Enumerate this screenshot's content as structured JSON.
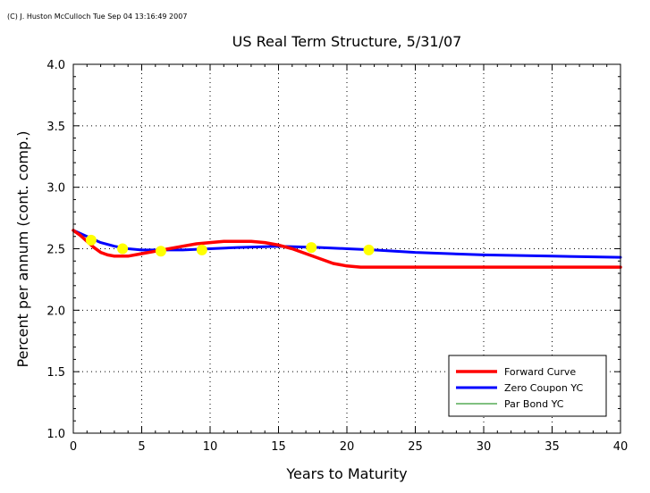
{
  "copyright": "(C) J. Huston McCulloch Tue Sep 04 13:16:49 2007",
  "chart_data": {
    "type": "line",
    "title": "US Real Term Structure, 5/31/07",
    "xlabel": "Years to Maturity",
    "ylabel": "Percent per annum (cont. comp.)",
    "xlim": [
      0,
      40
    ],
    "ylim": [
      1.0,
      4.0
    ],
    "x_ticks": [
      "0",
      "5",
      "10",
      "15",
      "20",
      "25",
      "30",
      "35",
      "40"
    ],
    "y_ticks": [
      "1.0",
      "1.5",
      "2.0",
      "2.5",
      "3.0",
      "3.5",
      "4.0"
    ],
    "grid": true,
    "legend_position": "bottom-right",
    "series": [
      {
        "name": "Forward Curve",
        "color": "#ff0000",
        "x": [
          0,
          0.5,
          1,
          1.5,
          2,
          2.5,
          3,
          3.5,
          4,
          5,
          6,
          7,
          8,
          9,
          10,
          11,
          12,
          13,
          14,
          15,
          16,
          17,
          18,
          19,
          20,
          21,
          22,
          25,
          30,
          35,
          40
        ],
        "y": [
          2.65,
          2.61,
          2.56,
          2.51,
          2.47,
          2.45,
          2.44,
          2.44,
          2.44,
          2.46,
          2.48,
          2.5,
          2.52,
          2.54,
          2.55,
          2.56,
          2.56,
          2.56,
          2.55,
          2.53,
          2.5,
          2.46,
          2.42,
          2.38,
          2.36,
          2.35,
          2.35,
          2.35,
          2.35,
          2.35,
          2.35
        ]
      },
      {
        "name": "Zero Coupon YC",
        "color": "#0000ff",
        "x": [
          0,
          1,
          2,
          3,
          4,
          5,
          6,
          7,
          8,
          10,
          12,
          15,
          18,
          20,
          22,
          25,
          30,
          35,
          40
        ],
        "y": [
          2.65,
          2.6,
          2.55,
          2.52,
          2.5,
          2.49,
          2.49,
          2.49,
          2.49,
          2.5,
          2.51,
          2.52,
          2.51,
          2.5,
          2.49,
          2.47,
          2.45,
          2.44,
          2.43
        ]
      },
      {
        "name": "Par Bond YC",
        "color": "#008000",
        "x": [
          0,
          1,
          2,
          3,
          4,
          5,
          6,
          7,
          8,
          10,
          12,
          15,
          18,
          20,
          22,
          25,
          30,
          35,
          40
        ],
        "y": [
          2.65,
          2.6,
          2.55,
          2.52,
          2.5,
          2.49,
          2.49,
          2.49,
          2.49,
          2.5,
          2.51,
          2.52,
          2.51,
          2.5,
          2.49,
          2.47,
          2.45,
          2.44,
          2.43
        ]
      }
    ],
    "observations": {
      "color": "#ffff00",
      "x": [
        1.3,
        3.6,
        6.4,
        9.4,
        17.4,
        21.6
      ],
      "y": [
        2.57,
        2.5,
        2.48,
        2.49,
        2.51,
        2.49
      ]
    }
  }
}
